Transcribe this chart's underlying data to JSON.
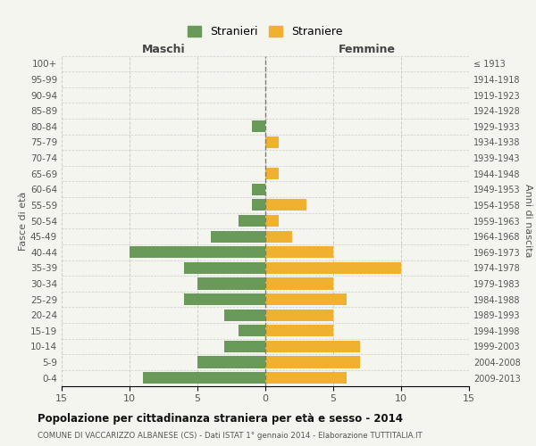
{
  "age_groups": [
    "0-4",
    "5-9",
    "10-14",
    "15-19",
    "20-24",
    "25-29",
    "30-34",
    "35-39",
    "40-44",
    "45-49",
    "50-54",
    "55-59",
    "60-64",
    "65-69",
    "70-74",
    "75-79",
    "80-84",
    "85-89",
    "90-94",
    "95-99",
    "100+"
  ],
  "birth_years": [
    "2009-2013",
    "2004-2008",
    "1999-2003",
    "1994-1998",
    "1989-1993",
    "1984-1988",
    "1979-1983",
    "1974-1978",
    "1969-1973",
    "1964-1968",
    "1959-1963",
    "1954-1958",
    "1949-1953",
    "1944-1948",
    "1939-1943",
    "1934-1938",
    "1929-1933",
    "1924-1928",
    "1919-1923",
    "1914-1918",
    "≤ 1913"
  ],
  "maschi": [
    9,
    5,
    3,
    2,
    3,
    6,
    5,
    6,
    10,
    4,
    2,
    1,
    1,
    0,
    0,
    0,
    1,
    0,
    0,
    0,
    0
  ],
  "femmine": [
    6,
    7,
    7,
    5,
    5,
    6,
    5,
    10,
    5,
    2,
    1,
    3,
    0,
    1,
    0,
    1,
    0,
    0,
    0,
    0,
    0
  ],
  "maschi_color": "#6a9a5a",
  "femmine_color": "#f0b030",
  "grid_color": "#cccccc",
  "center_line_color": "#808060",
  "title": "Popolazione per cittadinanza straniera per età e sesso - 2014",
  "subtitle": "COMUNE DI VACCARIZZO ALBANESE (CS) - Dati ISTAT 1° gennaio 2014 - Elaborazione TUTTITALIA.IT",
  "ylabel_left": "Fasce di età",
  "ylabel_right": "Anni di nascita",
  "xlabel_left": "Maschi",
  "xlabel_right": "Femmine",
  "legend_maschi": "Stranieri",
  "legend_femmine": "Straniere",
  "xlim": 15,
  "background_color": "#f5f5f0",
  "bar_height": 0.75
}
